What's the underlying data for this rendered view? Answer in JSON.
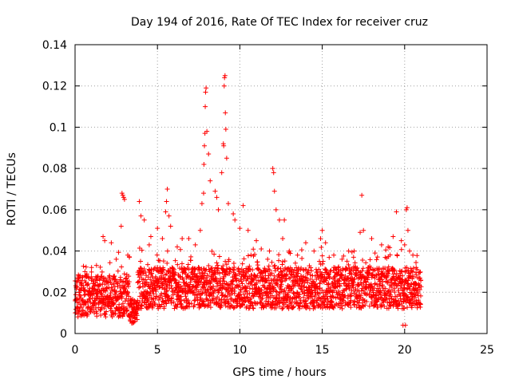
{
  "chart_data": {
    "type": "scatter",
    "title": "Day 194 of 2016, Rate Of TEC Index for receiver cruz",
    "xlabel": "GPS time / hours",
    "ylabel": "ROTI / TECUs",
    "xlim": [
      0,
      25
    ],
    "ylim": [
      0,
      0.14
    ],
    "x_ticks": [
      0,
      5,
      10,
      15,
      20,
      25
    ],
    "y_ticks": [
      0,
      0.02,
      0.04,
      0.06,
      0.08,
      0.1,
      0.12,
      0.14
    ],
    "x_tick_labels": [
      "0",
      "5",
      "10",
      "15",
      "20",
      "25"
    ],
    "y_tick_labels": [
      "0",
      "0.02",
      "0.04",
      "0.06",
      "0.08",
      "0.1",
      "0.12",
      "0.14"
    ],
    "grid": true,
    "marker": "+",
    "color": "#ff0000",
    "series": [
      {
        "name": "ROTI",
        "bulk": {
          "x_range": [
            0,
            21
          ],
          "typical_y_range": [
            0.005,
            0.035
          ],
          "note": "dense band of several thousand points; values below are sampled peaks / outliers"
        },
        "points": [
          [
            0.3,
            0.028
          ],
          [
            0.6,
            0.03
          ],
          [
            1.0,
            0.032
          ],
          [
            1.3,
            0.033
          ],
          [
            1.7,
            0.047
          ],
          [
            1.8,
            0.045
          ],
          [
            2.2,
            0.044
          ],
          [
            2.5,
            0.036
          ],
          [
            2.8,
            0.052
          ],
          [
            2.85,
            0.068
          ],
          [
            2.9,
            0.067
          ],
          [
            2.95,
            0.066
          ],
          [
            3.0,
            0.065
          ],
          [
            3.2,
            0.038
          ],
          [
            3.3,
            0.037
          ],
          [
            3.9,
            0.064
          ],
          [
            4.0,
            0.057
          ],
          [
            4.2,
            0.055
          ],
          [
            4.5,
            0.043
          ],
          [
            4.6,
            0.047
          ],
          [
            5.0,
            0.051
          ],
          [
            5.3,
            0.046
          ],
          [
            5.5,
            0.059
          ],
          [
            5.55,
            0.064
          ],
          [
            5.6,
            0.07
          ],
          [
            5.7,
            0.057
          ],
          [
            5.8,
            0.052
          ],
          [
            6.2,
            0.042
          ],
          [
            6.5,
            0.046
          ],
          [
            6.9,
            0.046
          ],
          [
            7.3,
            0.043
          ],
          [
            7.6,
            0.05
          ],
          [
            7.7,
            0.063
          ],
          [
            7.8,
            0.068
          ],
          [
            7.82,
            0.082
          ],
          [
            7.85,
            0.091
          ],
          [
            7.88,
            0.097
          ],
          [
            7.9,
            0.11
          ],
          [
            7.92,
            0.117
          ],
          [
            7.95,
            0.119
          ],
          [
            8.0,
            0.098
          ],
          [
            8.1,
            0.087
          ],
          [
            8.2,
            0.074
          ],
          [
            8.5,
            0.069
          ],
          [
            8.6,
            0.066
          ],
          [
            8.7,
            0.06
          ],
          [
            8.9,
            0.078
          ],
          [
            9.0,
            0.092
          ],
          [
            9.02,
            0.091
          ],
          [
            9.05,
            0.12
          ],
          [
            9.07,
            0.124
          ],
          [
            9.1,
            0.125
          ],
          [
            9.12,
            0.107
          ],
          [
            9.15,
            0.099
          ],
          [
            9.2,
            0.085
          ],
          [
            9.3,
            0.063
          ],
          [
            9.6,
            0.058
          ],
          [
            9.7,
            0.055
          ],
          [
            10.0,
            0.051
          ],
          [
            10.2,
            0.062
          ],
          [
            10.5,
            0.05
          ],
          [
            11.0,
            0.045
          ],
          [
            11.3,
            0.041
          ],
          [
            11.8,
            0.04
          ],
          [
            12.0,
            0.08
          ],
          [
            12.05,
            0.078
          ],
          [
            12.1,
            0.069
          ],
          [
            12.2,
            0.06
          ],
          [
            12.4,
            0.055
          ],
          [
            12.6,
            0.046
          ],
          [
            12.7,
            0.055
          ],
          [
            13.0,
            0.04
          ],
          [
            13.5,
            0.038
          ],
          [
            14.0,
            0.044
          ],
          [
            14.5,
            0.04
          ],
          [
            14.9,
            0.046
          ],
          [
            15.0,
            0.05
          ],
          [
            15.2,
            0.044
          ],
          [
            15.7,
            0.038
          ],
          [
            16.2,
            0.036
          ],
          [
            16.6,
            0.04
          ],
          [
            16.9,
            0.037
          ],
          [
            17.3,
            0.049
          ],
          [
            17.4,
            0.067
          ],
          [
            17.5,
            0.05
          ],
          [
            18.0,
            0.046
          ],
          [
            18.2,
            0.039
          ],
          [
            18.6,
            0.043
          ],
          [
            19.0,
            0.042
          ],
          [
            19.3,
            0.047
          ],
          [
            19.5,
            0.059
          ],
          [
            19.8,
            0.045
          ],
          [
            20.0,
            0.043
          ],
          [
            20.1,
            0.06
          ],
          [
            20.15,
            0.061
          ],
          [
            20.2,
            0.05
          ],
          [
            20.3,
            0.04
          ],
          [
            20.5,
            0.038
          ],
          [
            20.7,
            0.032
          ],
          [
            19.9,
            0.004
          ],
          [
            20.05,
            0.004
          ]
        ]
      }
    ]
  }
}
